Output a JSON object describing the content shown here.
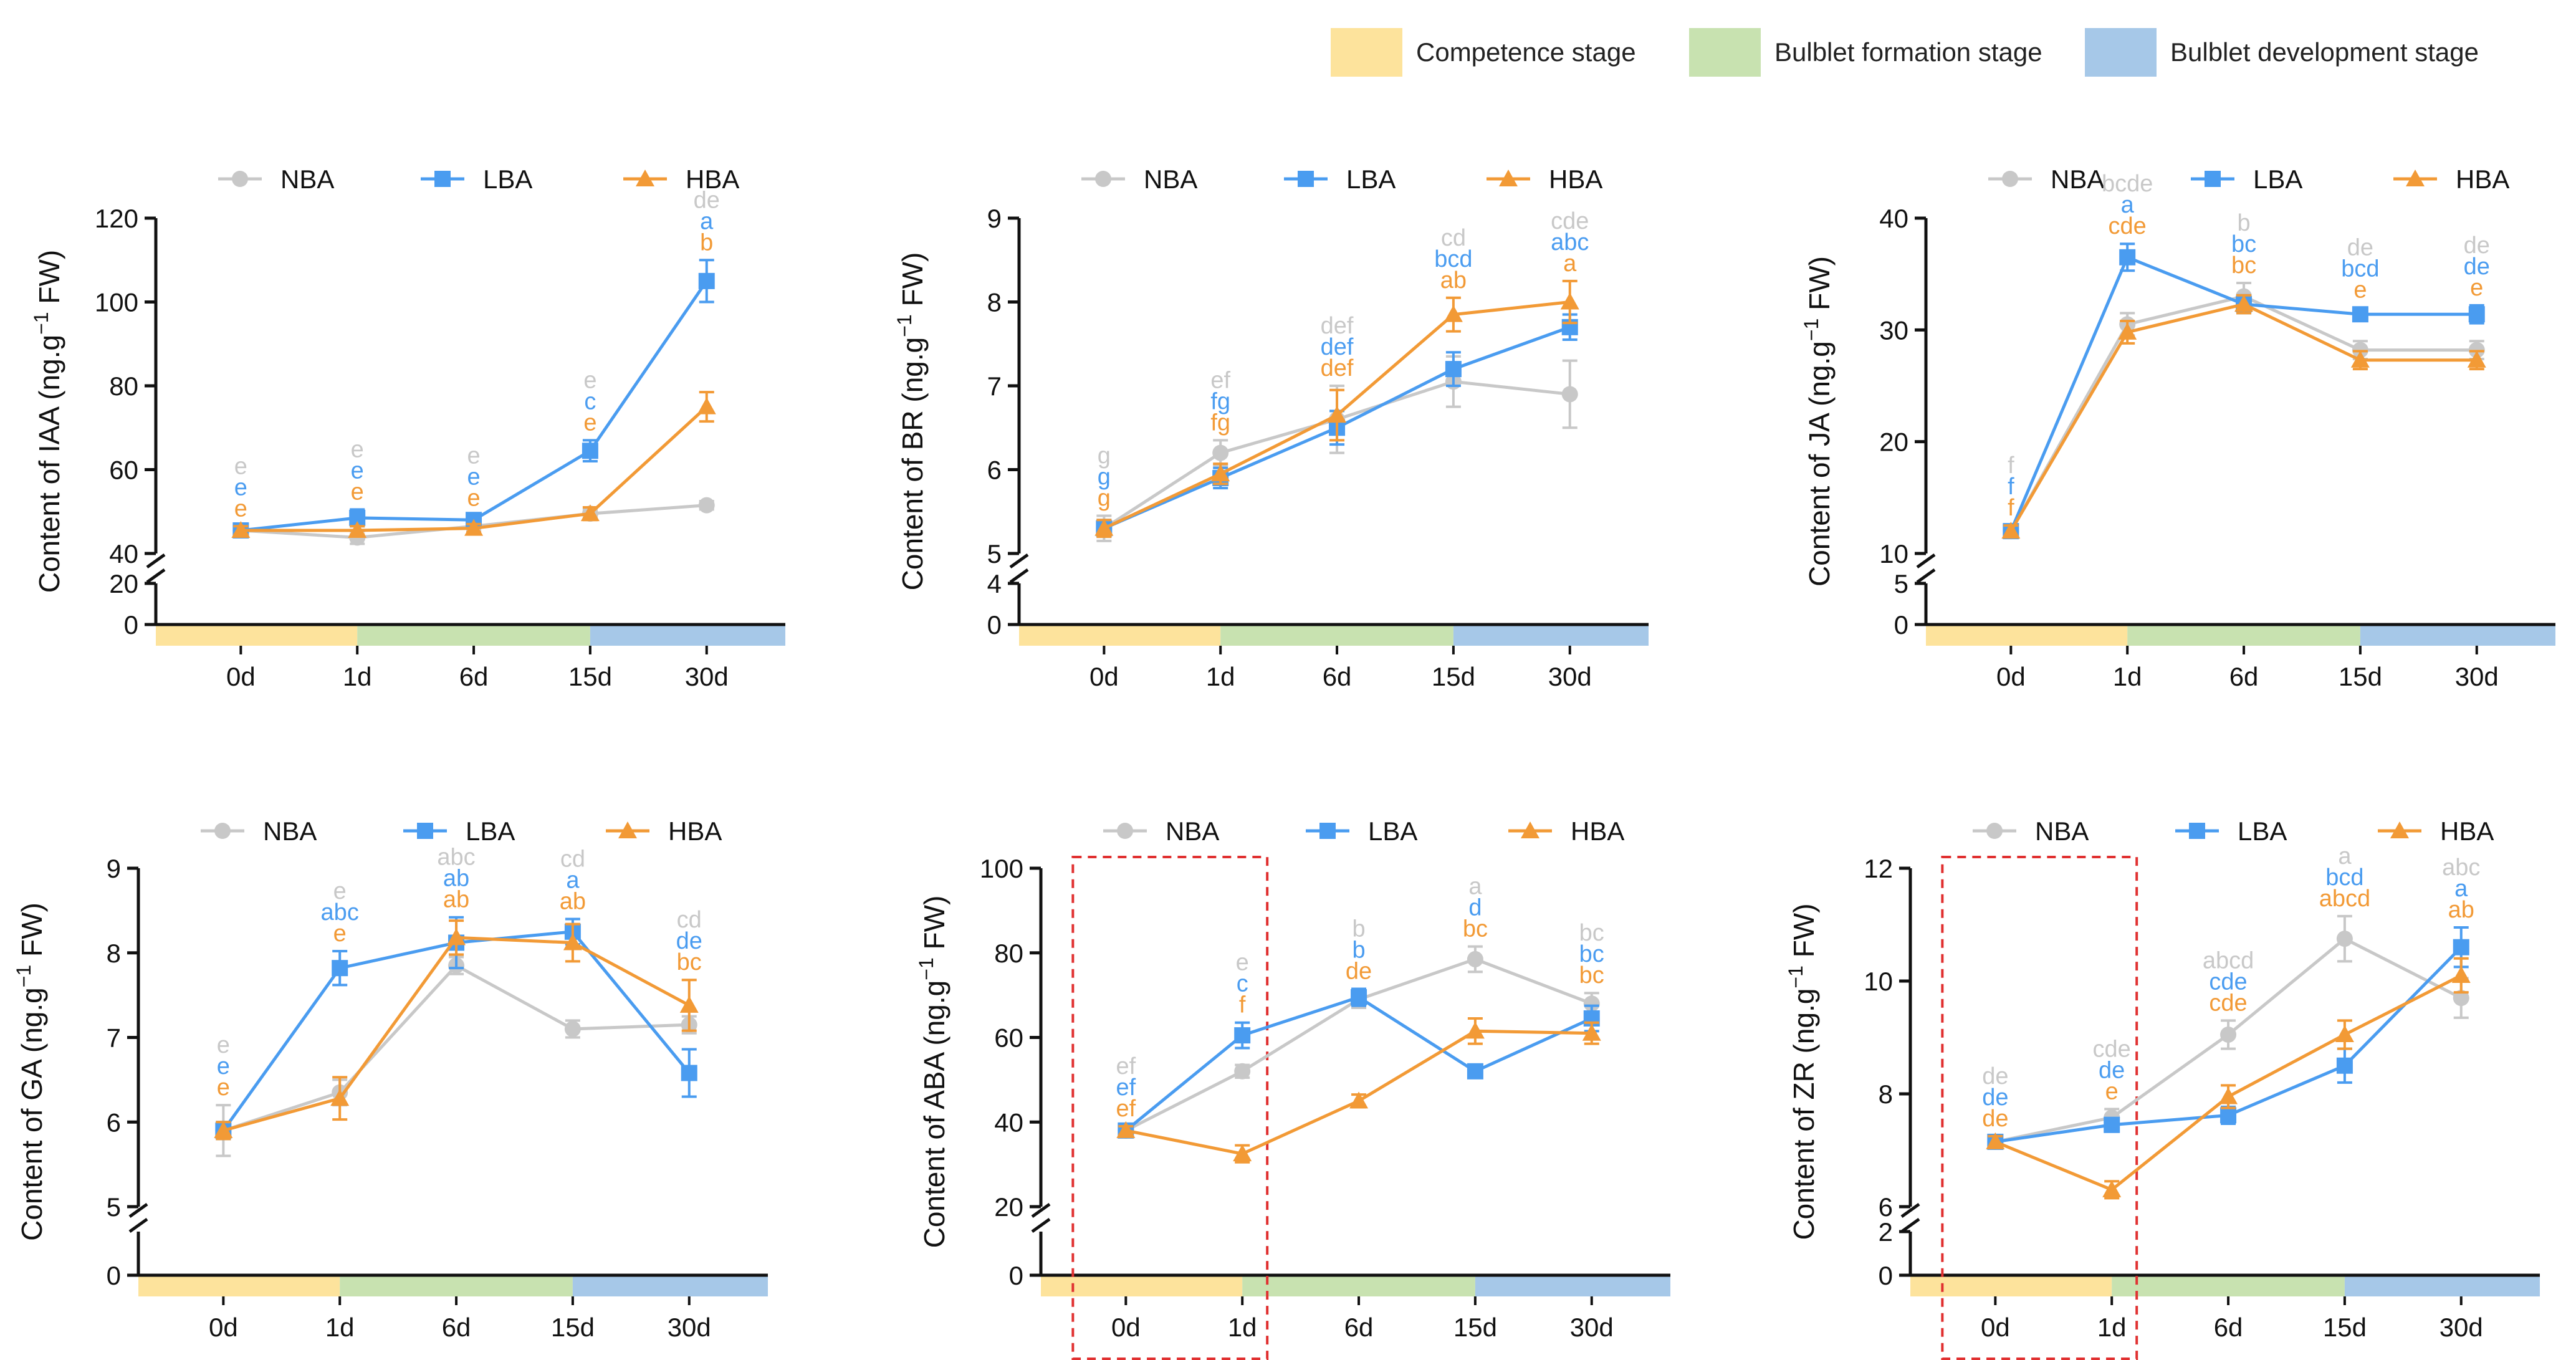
{
  "colors": {
    "NBA": "#c8c8c8",
    "LBA": "#4a9cf0",
    "HBA": "#f29a36",
    "competence": "#fde39c",
    "formation": "#c8e2b0",
    "development": "#a6c8e8",
    "highlight_box": "#e03030",
    "axis": "#111111"
  },
  "stage_legend": [
    {
      "key": "competence",
      "label": "Competence stage"
    },
    {
      "key": "formation",
      "label": "Bulblet formation stage"
    },
    {
      "key": "development",
      "label": "Bulblet development stage"
    }
  ],
  "series_names": [
    "NBA",
    "LBA",
    "HBA"
  ],
  "chart_data": [
    {
      "type": "line",
      "title": "",
      "ylabel": "Content of IAA (ng.g−1 FW)",
      "categories": [
        "0d",
        "1d",
        "6d",
        "15d",
        "30d"
      ],
      "ylim": [
        0,
        120
      ],
      "y_break": [
        20,
        40
      ],
      "yticks_low": [
        0,
        20
      ],
      "yticks_high": [
        40,
        60,
        80,
        100,
        120
      ],
      "highlight": null,
      "series": [
        {
          "name": "NBA",
          "values": [
            45.5,
            43.8,
            46.5,
            49.5,
            51.5
          ],
          "errors": [
            1,
            1.5,
            1,
            1,
            1
          ],
          "letters": [
            "e",
            "e",
            "e",
            "e",
            "de"
          ]
        },
        {
          "name": "LBA",
          "values": [
            45.5,
            48.5,
            48.0,
            64.5,
            105.0
          ],
          "errors": [
            1,
            2,
            1,
            2.5,
            5
          ],
          "letters": [
            "e",
            "e",
            "e",
            "c",
            "a"
          ]
        },
        {
          "name": "HBA",
          "values": [
            45.5,
            45.5,
            46.0,
            49.5,
            75.0
          ],
          "errors": [
            1,
            1,
            1,
            1.5,
            3.5
          ],
          "letters": [
            "e",
            "e",
            "e",
            "e",
            "b"
          ]
        }
      ]
    },
    {
      "type": "line",
      "title": "",
      "ylabel": "Content of BR (ng.g−1 FW)",
      "categories": [
        "0d",
        "1d",
        "6d",
        "15d",
        "30d"
      ],
      "ylim": [
        0,
        9
      ],
      "y_break": [
        4,
        5
      ],
      "yticks_low": [
        0,
        4
      ],
      "yticks_high": [
        5,
        6,
        7,
        8,
        9
      ],
      "highlight": null,
      "series": [
        {
          "name": "NBA",
          "values": [
            5.3,
            6.2,
            6.6,
            7.05,
            6.9
          ],
          "errors": [
            0.15,
            0.15,
            0.4,
            0.3,
            0.4
          ],
          "letters": [
            "g",
            "ef",
            "def",
            "cd",
            "cde"
          ]
        },
        {
          "name": "LBA",
          "values": [
            5.3,
            5.9,
            6.5,
            7.2,
            7.7
          ],
          "errors": [
            0.1,
            0.12,
            0.2,
            0.2,
            0.15
          ],
          "letters": [
            "g",
            "fg",
            "def",
            "bcd",
            "abc"
          ]
        },
        {
          "name": "HBA",
          "values": [
            5.3,
            5.95,
            6.65,
            7.85,
            8.0
          ],
          "errors": [
            0.1,
            0.12,
            0.3,
            0.2,
            0.25
          ],
          "letters": [
            "g",
            "fg",
            "def",
            "ab",
            "a"
          ]
        }
      ]
    },
    {
      "type": "line",
      "title": "",
      "ylabel": "Content of JA (ng.g−1 FW)",
      "categories": [
        "0d",
        "1d",
        "6d",
        "15d",
        "30d"
      ],
      "ylim": [
        0,
        40
      ],
      "y_break": [
        5,
        10
      ],
      "yticks_low": [
        0,
        5
      ],
      "yticks_high": [
        10,
        20,
        30,
        40
      ],
      "highlight": null,
      "series": [
        {
          "name": "NBA",
          "values": [
            12.0,
            30.5,
            33.0,
            28.2,
            28.2
          ],
          "errors": [
            0.5,
            1,
            1.2,
            0.8,
            0.8
          ],
          "letters": [
            "f",
            "bcde",
            "b",
            "de",
            "de"
          ]
        },
        {
          "name": "LBA",
          "values": [
            12.0,
            36.5,
            32.3,
            31.4,
            31.4
          ],
          "errors": [
            0.5,
            1.2,
            0.8,
            0.6,
            0.8
          ],
          "letters": [
            "f",
            "a",
            "bc",
            "bcd",
            "de"
          ]
        },
        {
          "name": "HBA",
          "values": [
            12.0,
            29.8,
            32.3,
            27.3,
            27.3
          ],
          "errors": [
            0.5,
            1,
            0.8,
            0.8,
            0.8
          ],
          "letters": [
            "f",
            "cde",
            "bc",
            "e",
            "e"
          ]
        }
      ]
    },
    {
      "type": "line",
      "title": "",
      "ylabel": "Content of GA (ng.g−1 FW)",
      "categories": [
        "0d",
        "1d",
        "6d",
        "15d",
        "30d"
      ],
      "ylim": [
        0,
        9
      ],
      "y_break": [
        5,
        5
      ],
      "yticks_low": [
        0
      ],
      "yticks_high": [
        5,
        6,
        7,
        8,
        9
      ],
      "highlight": null,
      "series": [
        {
          "name": "NBA",
          "values": [
            5.9,
            6.35,
            7.85,
            7.1,
            7.15
          ],
          "errors": [
            0.3,
            0.15,
            0.1,
            0.1,
            0.1
          ],
          "letters": [
            "e",
            "e",
            "abc",
            "cd",
            "cd"
          ]
        },
        {
          "name": "LBA",
          "values": [
            5.9,
            7.82,
            8.12,
            8.25,
            6.58
          ],
          "errors": [
            0.1,
            0.2,
            0.3,
            0.15,
            0.28
          ],
          "letters": [
            "e",
            "abc",
            "ab",
            "a",
            "de"
          ]
        },
        {
          "name": "HBA",
          "values": [
            5.9,
            6.28,
            8.18,
            8.12,
            7.38
          ],
          "errors": [
            0.1,
            0.25,
            0.2,
            0.22,
            0.3
          ],
          "letters": [
            "e",
            "e",
            "ab",
            "ab",
            "bc"
          ]
        }
      ]
    },
    {
      "type": "line",
      "title": "",
      "ylabel": "Content of ABA (ng.g−1 FW)",
      "categories": [
        "0d",
        "1d",
        "6d",
        "15d",
        "30d"
      ],
      "ylim": [
        0,
        100
      ],
      "y_break": [
        20,
        20
      ],
      "yticks_low": [
        0
      ],
      "yticks_high": [
        20,
        40,
        60,
        80,
        100
      ],
      "highlight": [
        0,
        1
      ],
      "series": [
        {
          "name": "NBA",
          "values": [
            38.0,
            52.0,
            69.0,
            78.5,
            68.0
          ],
          "errors": [
            1,
            1.5,
            2,
            3,
            2.5
          ],
          "letters": [
            "ef",
            "e",
            "b",
            "a",
            "bc"
          ]
        },
        {
          "name": "LBA",
          "values": [
            38.0,
            60.5,
            69.5,
            52.0,
            64.5
          ],
          "errors": [
            1,
            3,
            2,
            1.5,
            3
          ],
          "letters": [
            "ef",
            "c",
            "b",
            "d",
            "bc"
          ]
        },
        {
          "name": "HBA",
          "values": [
            38.0,
            32.5,
            45.0,
            61.5,
            61.0
          ],
          "errors": [
            1,
            2,
            1.5,
            3,
            2.5
          ],
          "letters": [
            "ef",
            "f",
            "de",
            "bc",
            "bc"
          ]
        }
      ]
    },
    {
      "type": "line",
      "title": "",
      "ylabel": "Content of ZR (ng.g−1 FW)",
      "categories": [
        "0d",
        "1d",
        "6d",
        "15d",
        "30d"
      ],
      "ylim": [
        0,
        12
      ],
      "y_break": [
        2,
        6
      ],
      "yticks_low": [
        0,
        2
      ],
      "yticks_high": [
        6,
        8,
        10,
        12
      ],
      "highlight": [
        0,
        1
      ],
      "series": [
        {
          "name": "NBA",
          "values": [
            7.15,
            7.58,
            9.05,
            10.75,
            9.7
          ],
          "errors": [
            0.1,
            0.15,
            0.25,
            0.4,
            0.35
          ],
          "letters": [
            "de",
            "cde",
            "abcd",
            "a",
            "abc"
          ]
        },
        {
          "name": "LBA",
          "values": [
            7.15,
            7.45,
            7.62,
            8.5,
            10.6
          ],
          "errors": [
            0.1,
            0.12,
            0.15,
            0.3,
            0.35
          ],
          "letters": [
            "de",
            "de",
            "cde",
            "bcd",
            "a"
          ]
        },
        {
          "name": "HBA",
          "values": [
            7.15,
            6.3,
            7.95,
            9.05,
            10.1
          ],
          "errors": [
            0.1,
            0.15,
            0.2,
            0.25,
            0.3
          ],
          "letters": [
            "de",
            "e",
            "cde",
            "abcd",
            "ab"
          ]
        }
      ]
    }
  ]
}
